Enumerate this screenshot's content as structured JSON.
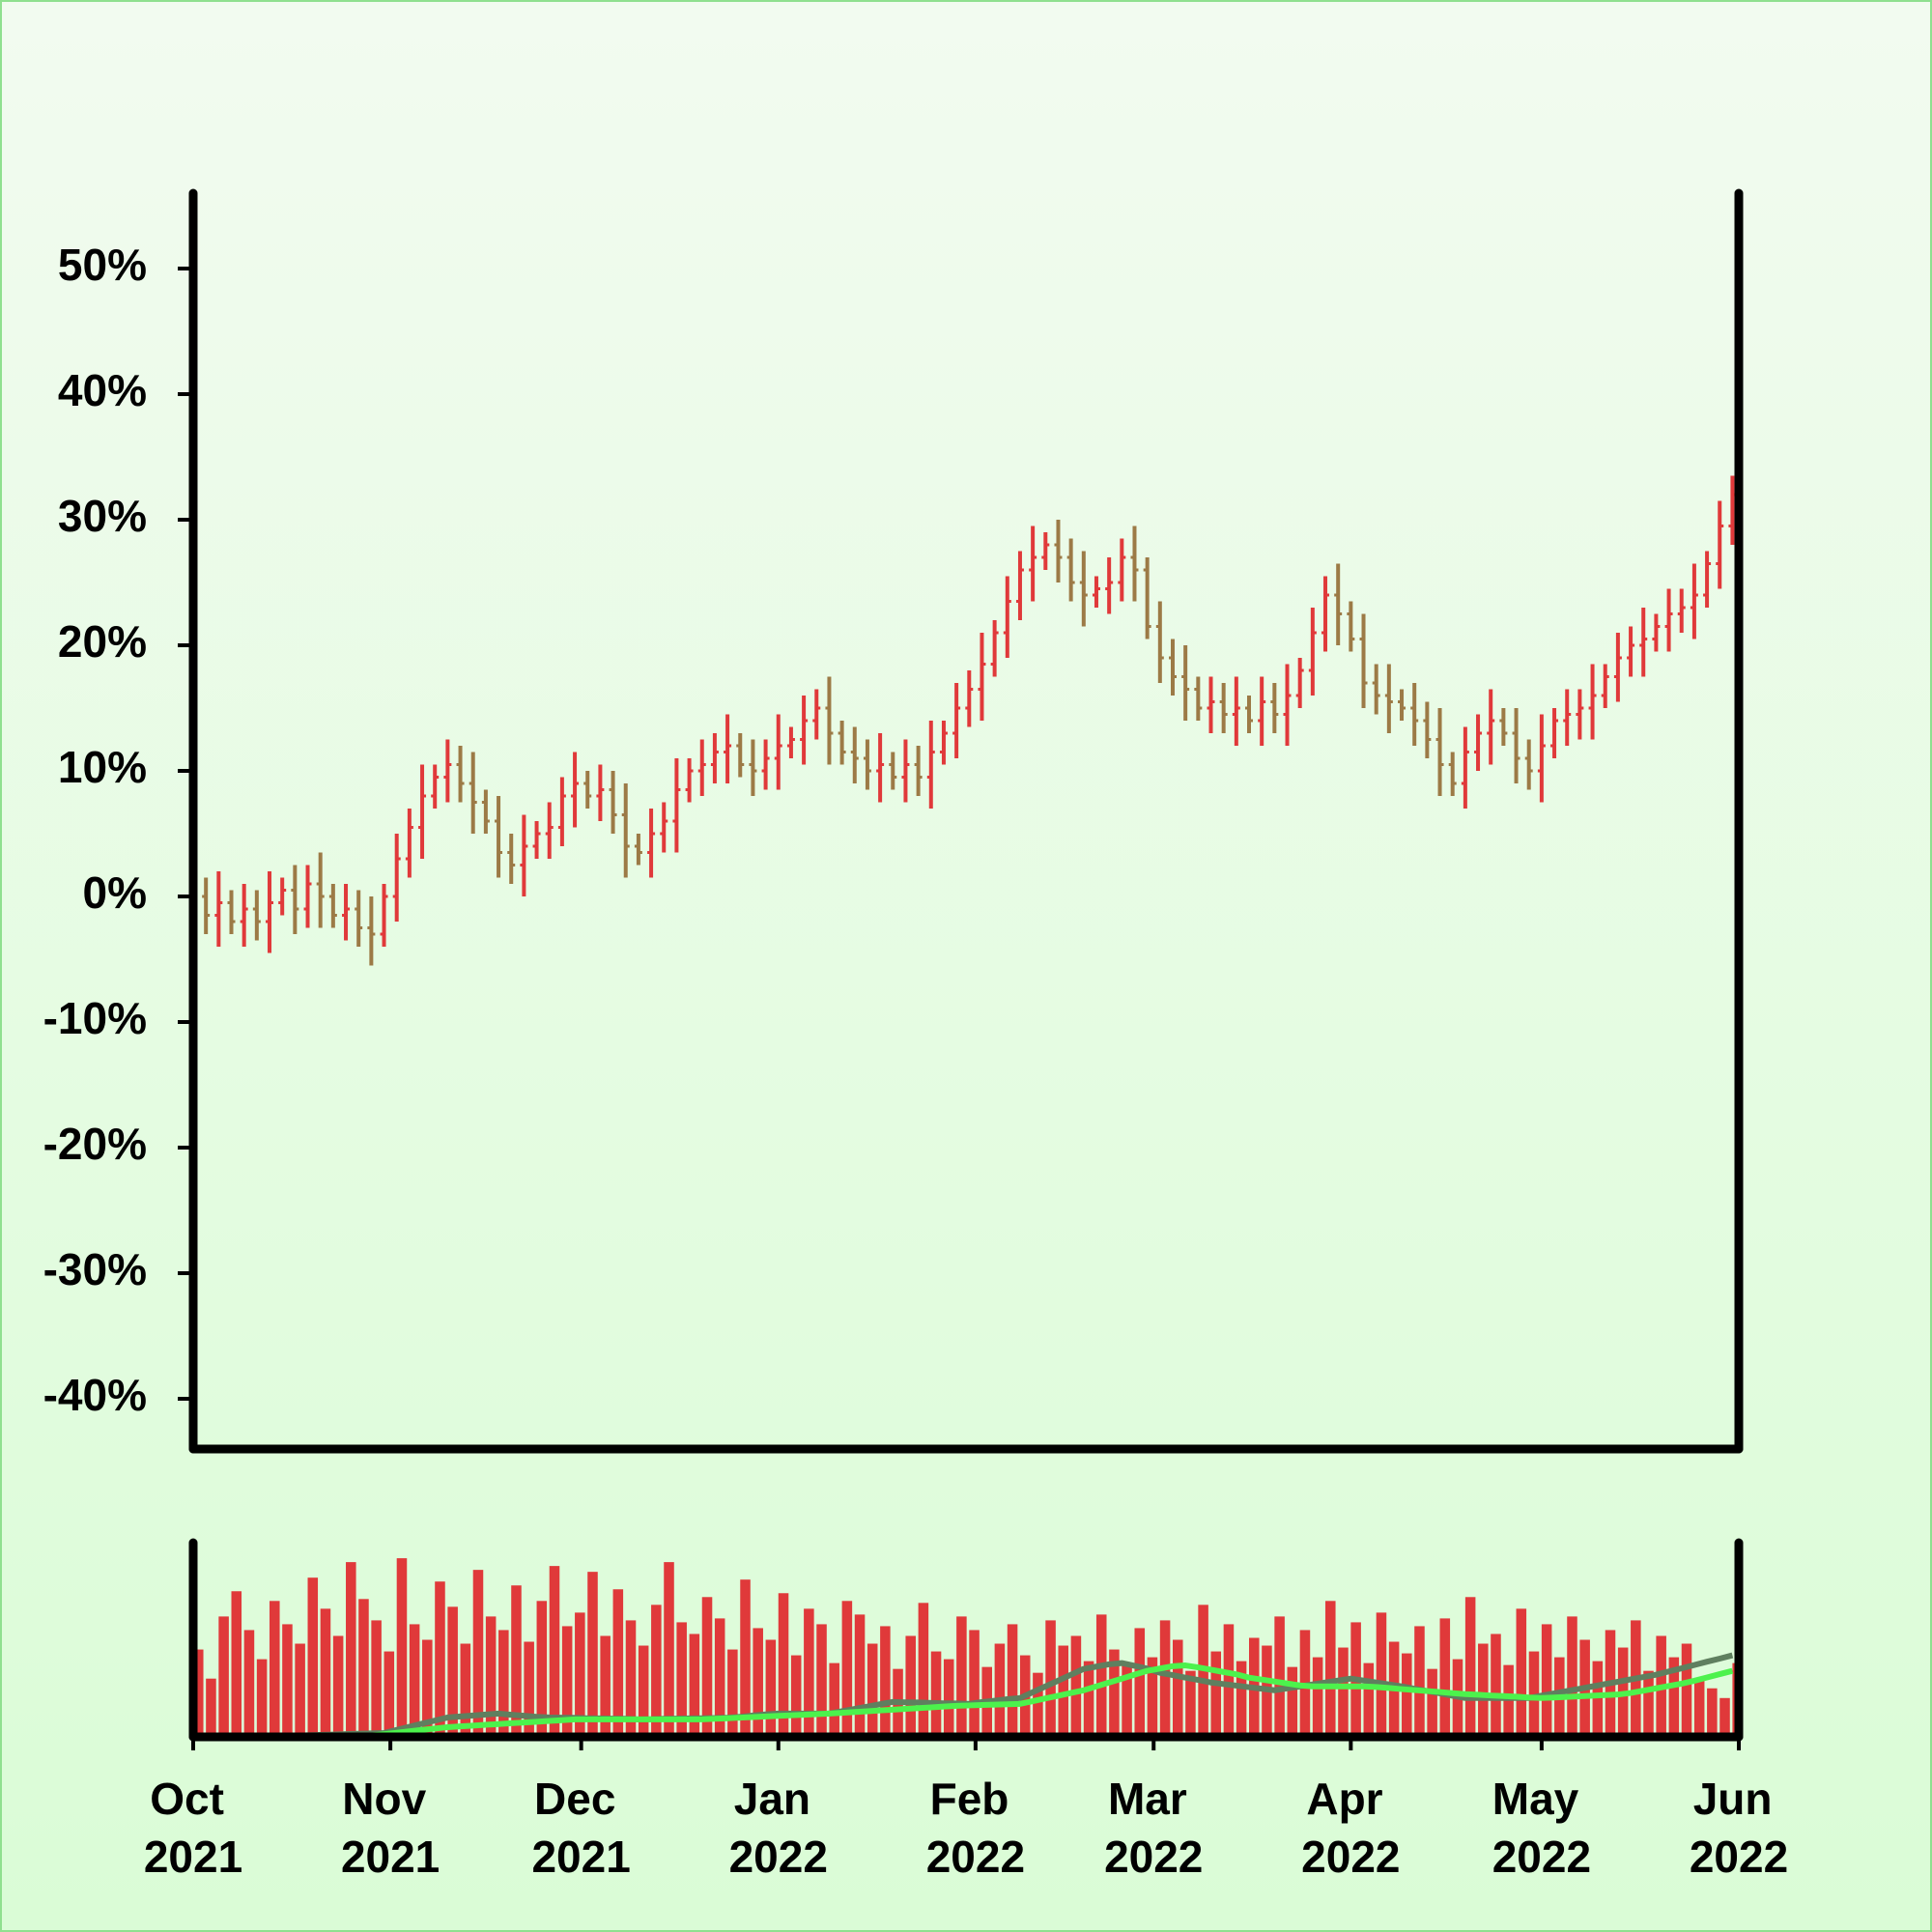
{
  "chart_data": [
    {
      "type": "ohlc",
      "xlim": [
        0,
        243
      ],
      "ylim": [
        -44,
        56
      ],
      "yticks": [
        {
          "value": -40,
          "label": "-40%"
        },
        {
          "value": -30,
          "label": "-30%"
        },
        {
          "value": -20,
          "label": "-20%"
        },
        {
          "value": -10,
          "label": "-10%"
        },
        {
          "value": 0,
          "label": "0%"
        },
        {
          "value": 10,
          "label": "10%"
        },
        {
          "value": 20,
          "label": "20%"
        },
        {
          "value": 30,
          "label": "30%"
        },
        {
          "value": 40,
          "label": "40%"
        },
        {
          "value": 50,
          "label": "50%"
        }
      ],
      "x": [
        0,
        2,
        4,
        6,
        8,
        10,
        12,
        14,
        16,
        18,
        20,
        22,
        24,
        26,
        28,
        30,
        32,
        34,
        36,
        38,
        40,
        42,
        44,
        46,
        48,
        50,
        52,
        54,
        56,
        58,
        60,
        62,
        64,
        66,
        68,
        70,
        72,
        74,
        76,
        78,
        80,
        82,
        84,
        86,
        88,
        90,
        92,
        94,
        96,
        98,
        100,
        102,
        104,
        106,
        108,
        110,
        112,
        114,
        116,
        118,
        120,
        122,
        124,
        126,
        128,
        130,
        132,
        134,
        136,
        138,
        140,
        142,
        144,
        146,
        148,
        150,
        152,
        154,
        156,
        158,
        160,
        162,
        164,
        166,
        168,
        170,
        172,
        174,
        176,
        178,
        180,
        182,
        184,
        186,
        188,
        190,
        192,
        194,
        196,
        198,
        200,
        202,
        204,
        206,
        208,
        210,
        212,
        214,
        216,
        218,
        220,
        222,
        224,
        226,
        228,
        230,
        232,
        234,
        236,
        238,
        240,
        242
      ],
      "series": [
        {
          "up_color": "#e0393a",
          "down_color": "#9c7a46",
          "open": [
            1,
            0,
            -1.5,
            -0.5,
            -2,
            -1,
            -2,
            -0.5,
            0.5,
            -1,
            1,
            0,
            -1.5,
            -1,
            -2.5,
            -3,
            0,
            3,
            5.5,
            8,
            9.5,
            10.5,
            9,
            7.5,
            6,
            3.5,
            2.5,
            4,
            5,
            5.5,
            8,
            9,
            8,
            8.5,
            6.5,
            4,
            3.5,
            5,
            6,
            8.5,
            10,
            10.5,
            11.5,
            12,
            10.5,
            10,
            11,
            12,
            12.5,
            14,
            15,
            13,
            11.5,
            11,
            10,
            10.5,
            9.5,
            10.5,
            9.5,
            11.5,
            13,
            15,
            16.5,
            18.5,
            21,
            23.5,
            26,
            27,
            28,
            27,
            25,
            24,
            24.5,
            25,
            27,
            26,
            21.5,
            19,
            17.5,
            16.5,
            15,
            15.5,
            14.5,
            15,
            14,
            15.5,
            14.5,
            16,
            18,
            21,
            24,
            22.5,
            20.5,
            17,
            16,
            15.5,
            15,
            14,
            12.5,
            10.5,
            9,
            11.5,
            13,
            14,
            13,
            11,
            10,
            12,
            14,
            14.5,
            15,
            16,
            17.5,
            19,
            20,
            20.5,
            21.5,
            22.5,
            23,
            24,
            26.5,
            29.5
          ],
          "high": [
            3,
            1.5,
            2,
            0.5,
            1,
            0.5,
            2,
            1.5,
            2.5,
            2.5,
            3.5,
            1,
            1,
            0.5,
            0,
            1,
            5,
            7,
            10.5,
            10.5,
            12.5,
            12,
            11.5,
            8.5,
            8,
            5,
            6.5,
            6,
            7.5,
            9.5,
            11.5,
            10,
            10.5,
            10,
            9,
            5,
            7,
            7.5,
            11,
            11,
            12.5,
            13,
            14.5,
            13,
            12.5,
            12.5,
            14.5,
            13.5,
            16,
            16.5,
            17.5,
            14,
            13.5,
            12.5,
            13,
            11.5,
            12.5,
            12,
            14,
            14,
            17,
            18,
            21,
            22,
            25.5,
            27.5,
            29.5,
            29,
            30,
            28.5,
            27.5,
            25.5,
            27,
            28.5,
            29.5,
            27,
            23.5,
            20.5,
            20,
            17.5,
            17.5,
            17,
            17.5,
            16,
            17.5,
            17,
            18.5,
            19,
            23,
            25.5,
            26.5,
            23.5,
            22.5,
            18.5,
            18.5,
            16.5,
            17,
            15.5,
            15,
            11.5,
            13.5,
            14.5,
            16.5,
            15,
            15,
            12.5,
            14.5,
            15,
            16.5,
            16.5,
            18.5,
            18.5,
            21,
            21.5,
            23,
            22.5,
            24.5,
            24.5,
            26.5,
            27.5,
            31.5,
            33.5
          ],
          "low": [
            -2,
            -3,
            -4,
            -3,
            -4,
            -3.5,
            -4.5,
            -1.5,
            -3,
            -2.5,
            -2.5,
            -2.5,
            -3.5,
            -4,
            -5.5,
            -4,
            -2,
            1.5,
            3,
            7,
            7.5,
            7.5,
            5,
            5,
            1.5,
            1,
            0,
            3,
            3,
            4,
            5.5,
            7,
            6,
            5,
            1.5,
            2.5,
            1.5,
            3.5,
            3.5,
            7.5,
            8,
            9,
            9,
            9.5,
            8,
            8.5,
            8.5,
            11,
            10.5,
            12.5,
            10.5,
            10.5,
            9,
            8.5,
            7.5,
            8.5,
            7.5,
            8,
            7,
            10.5,
            11,
            13.5,
            14,
            17.5,
            19,
            22,
            23.5,
            26,
            25,
            23.5,
            21.5,
            23,
            22.5,
            23.5,
            23.5,
            20.5,
            17,
            16,
            14,
            14,
            13,
            13,
            12,
            13,
            12,
            13,
            12,
            15,
            16,
            19.5,
            20,
            19.5,
            15,
            14.5,
            13,
            14,
            12,
            11,
            8,
            8,
            7,
            10,
            10.5,
            12,
            9,
            8.5,
            7.5,
            11,
            12,
            12.5,
            12.5,
            15,
            15.5,
            17.5,
            17.5,
            19.5,
            19.5,
            21,
            20.5,
            23,
            24.5,
            28
          ],
          "close": [
            0,
            -1.5,
            -0.5,
            -2,
            -1,
            -2,
            -0.5,
            0.5,
            -1,
            1,
            0,
            -1.5,
            -1,
            -2.5,
            -3,
            0,
            3,
            5.5,
            8,
            9.5,
            10.5,
            9,
            7.5,
            6,
            3.5,
            2.5,
            4,
            5,
            5.5,
            8,
            9,
            8,
            8.5,
            6.5,
            4,
            3.5,
            5,
            6,
            8.5,
            10,
            10.5,
            11.5,
            12,
            10.5,
            10,
            11,
            12,
            12.5,
            14,
            15,
            13,
            11.5,
            11,
            10,
            10.5,
            9.5,
            10.5,
            9.5,
            11.5,
            13,
            15,
            16.5,
            18.5,
            21,
            23.5,
            26,
            27,
            28,
            27,
            25,
            24,
            24.5,
            25,
            27,
            26,
            21.5,
            19,
            17.5,
            16.5,
            15,
            15.5,
            14.5,
            15,
            14,
            15.5,
            14.5,
            16,
            18,
            21,
            24,
            22.5,
            20.5,
            17,
            16,
            15.5,
            15,
            14,
            12.5,
            10.5,
            9,
            11.5,
            13,
            14,
            13,
            11,
            10,
            12,
            14,
            14.5,
            15,
            16,
            17.5,
            19,
            20,
            20.5,
            21.5,
            22.5,
            23,
            24,
            26.5,
            29.5,
            32
          ]
        }
      ]
    },
    {
      "type": "bar",
      "xlim": [
        0,
        243
      ],
      "ylim": [
        0,
        100
      ],
      "xticks": [
        {
          "value": 0,
          "label": "Oct 2021"
        },
        {
          "value": 31,
          "label": "Nov 2021"
        },
        {
          "value": 61,
          "label": "Dec 2021"
        },
        {
          "value": 92,
          "label": "Jan 2022"
        },
        {
          "value": 123,
          "label": "Feb 2022"
        },
        {
          "value": 151,
          "label": "Mar 2022"
        },
        {
          "value": 182,
          "label": "Apr 2022"
        },
        {
          "value": 212,
          "label": "May 2022"
        },
        {
          "value": 243,
          "label": "Jun 2022"
        }
      ],
      "x": [
        0,
        2,
        4,
        6,
        8,
        10,
        12,
        14,
        16,
        18,
        20,
        22,
        24,
        26,
        28,
        30,
        32,
        34,
        36,
        38,
        40,
        42,
        44,
        46,
        48,
        50,
        52,
        54,
        56,
        58,
        60,
        62,
        64,
        66,
        68,
        70,
        72,
        74,
        76,
        78,
        80,
        82,
        84,
        86,
        88,
        90,
        92,
        94,
        96,
        98,
        100,
        102,
        104,
        106,
        108,
        110,
        112,
        114,
        116,
        118,
        120,
        122,
        124,
        126,
        128,
        130,
        132,
        134,
        136,
        138,
        140,
        142,
        144,
        146,
        148,
        150,
        152,
        154,
        156,
        158,
        160,
        162,
        164,
        166,
        168,
        170,
        172,
        174,
        176,
        178,
        180,
        182,
        184,
        186,
        188,
        190,
        192,
        194,
        196,
        198,
        200,
        202,
        204,
        206,
        208,
        210,
        212,
        214,
        216,
        218,
        220,
        222,
        224,
        226,
        228,
        230,
        232,
        234,
        236,
        238,
        240,
        242
      ],
      "series": [
        {
          "type": "bar",
          "color": "#e0393a",
          "values": [
            45,
            30,
            62,
            75,
            55,
            40,
            70,
            58,
            48,
            82,
            66,
            52,
            90,
            71,
            60,
            44,
            92,
            58,
            50,
            80,
            67,
            48,
            86,
            62,
            55,
            78,
            49,
            70,
            88,
            57,
            64,
            85,
            52,
            76,
            60,
            47,
            68,
            90,
            59,
            53,
            72,
            61,
            45,
            81,
            56,
            50,
            74,
            42,
            66,
            58,
            38,
            70,
            63,
            48,
            57,
            35,
            52,
            69,
            44,
            40,
            62,
            55,
            36,
            48,
            58,
            42,
            33,
            60,
            47,
            52,
            39,
            63,
            45,
            37,
            56,
            41,
            60,
            50,
            34,
            68,
            44,
            58,
            39,
            51,
            47,
            62,
            36,
            55,
            41,
            70,
            46,
            59,
            38,
            64,
            49,
            43,
            57,
            35,
            61,
            40,
            72,
            48,
            53,
            37,
            66,
            44,
            58,
            41,
            62,
            50,
            39,
            55,
            46,
            60,
            34,
            52,
            41,
            48,
            30,
            25,
            20,
            38
          ]
        },
        {
          "type": "line",
          "color": "#5f7f5f",
          "values": [
            null,
            null,
            null,
            null,
            null,
            0,
            0.2,
            0.4,
            0.6,
            0.8,
            1,
            1.2,
            1.4,
            1.6,
            1.8,
            2,
            3.6,
            5.2,
            6.8,
            8.4,
            10,
            10.5,
            11,
            11.5,
            12,
            11.4,
            10.9,
            10.3,
            10,
            9.9,
            9.8,
            9.6,
            9.5,
            9.4,
            9.3,
            9,
            9.1,
            9.3,
            9.4,
            9.5,
            9.6,
            9.7,
            9.9,
            10.3,
            11,
            11.6,
            12,
            12,
            12,
            12,
            12,
            13.2,
            14.4,
            15.6,
            16.8,
            18,
            17.8,
            17.7,
            17.5,
            17.3,
            17.2,
            17,
            17.9,
            18.6,
            19.4,
            20,
            23,
            26,
            29,
            32,
            35,
            36.2,
            37.4,
            38,
            36.6,
            35.2,
            33,
            31.8,
            30.5,
            29.3,
            28,
            27.2,
            26.4,
            25.6,
            24.8,
            24,
            25,
            26,
            27,
            28,
            29,
            30,
            29,
            28,
            27,
            26,
            24.8,
            23.6,
            22.4,
            21.2,
            20,
            20,
            20,
            20,
            20,
            20,
            21.2,
            22.4,
            23.6,
            24.8,
            26,
            27.2,
            28.4,
            29.6,
            30.8,
            32,
            33.7,
            35.3,
            37,
            38.7,
            40.3,
            42
          ]
        },
        {
          "type": "line",
          "color": "#4cf24c",
          "values": [
            null,
            null,
            null,
            null,
            null,
            null,
            null,
            null,
            null,
            null,
            null,
            null,
            null,
            0,
            0.7,
            1.4,
            2.1,
            2.9,
            3.6,
            4.3,
            5,
            5.4,
            5.8,
            6.2,
            6.6,
            7,
            7.4,
            7.8,
            8.2,
            8.6,
            9,
            9,
            9,
            9,
            9,
            9,
            9,
            9,
            9,
            9,
            9,
            9.3,
            9.6,
            9.9,
            10.2,
            10.5,
            10.8,
            11.1,
            11.4,
            11.7,
            12,
            12.4,
            12.8,
            13.2,
            13.6,
            14,
            14.4,
            14.8,
            15.2,
            15.6,
            16,
            16.2,
            16.4,
            16.6,
            16.8,
            17,
            18.4,
            19.8,
            21.2,
            22.6,
            24,
            26,
            28,
            30,
            32,
            34,
            35.2,
            36.4,
            36.8,
            35.8,
            34.6,
            33.4,
            32.2,
            30.5,
            29.5,
            28.5,
            27.5,
            26.5,
            26,
            26,
            26,
            26,
            26,
            25.7,
            25.2,
            24.6,
            24.1,
            23.6,
            23.1,
            22.5,
            22,
            21.7,
            21.3,
            21,
            20.7,
            20.3,
            20,
            20.3,
            20.6,
            20.9,
            21.2,
            21.5,
            21.8,
            22.6,
            23.8,
            25,
            26.2,
            27.4,
            28.9,
            30.6,
            32.3,
            34
          ]
        }
      ]
    }
  ]
}
